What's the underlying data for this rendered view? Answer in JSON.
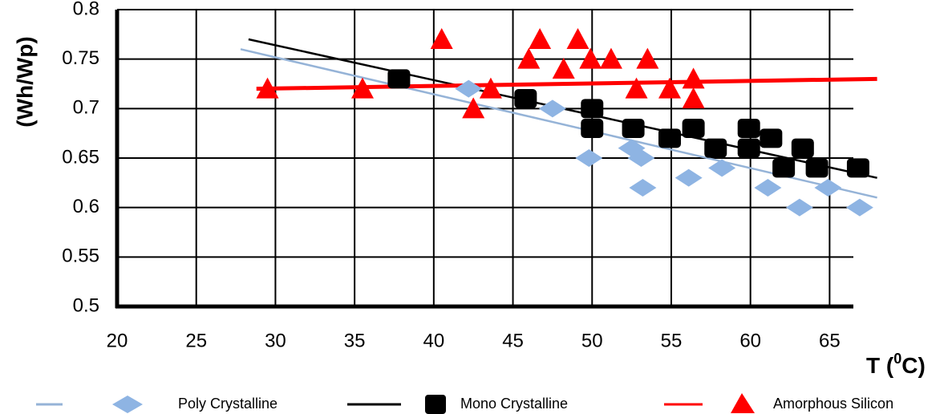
{
  "chart_data": {
    "type": "scatter",
    "title": "",
    "xlabel": "T (0C)",
    "xlabel_main": "T (",
    "xlabel_sup": "0",
    "xlabel_tail": "C)",
    "ylabel": "(Wh/Wp)",
    "xlim": [
      20,
      66.5
    ],
    "ylim": [
      0.5,
      0.8
    ],
    "x_ticks": [
      20,
      25,
      30,
      35,
      40,
      45,
      50,
      55,
      60,
      65
    ],
    "x_tick_labels": [
      "20",
      "25",
      "30",
      "35",
      "40",
      "45",
      "50",
      "55",
      "60",
      "65"
    ],
    "y_ticks": [
      0.5,
      0.55,
      0.6,
      0.65,
      0.7,
      0.75,
      0.8
    ],
    "y_tick_labels": [
      "0.5",
      "0.55",
      "0.6",
      "0.65",
      "0.7",
      "0.75",
      "0.8"
    ],
    "grid": true,
    "legend_position": "bottom",
    "series": [
      {
        "name": "Poly Crystalline",
        "marker": "diamond",
        "color": "#8EB4E3",
        "line_color": "#95B3D7",
        "points": [
          [
            42.2,
            0.72
          ],
          [
            47.5,
            0.7
          ],
          [
            49.8,
            0.65
          ],
          [
            52.5,
            0.66
          ],
          [
            53.1,
            0.65
          ],
          [
            53.2,
            0.62
          ],
          [
            56.1,
            0.63
          ],
          [
            58.2,
            0.64
          ],
          [
            61.1,
            0.62
          ],
          [
            63.1,
            0.6
          ],
          [
            64.9,
            0.62
          ],
          [
            66.9,
            0.6
          ]
        ],
        "trendline": [
          [
            27.8,
            0.76
          ],
          [
            68.0,
            0.61
          ]
        ]
      },
      {
        "name": "Mono Crystalline",
        "marker": "square",
        "color": "#000000",
        "line_color": "#000000",
        "points": [
          [
            37.8,
            0.73
          ],
          [
            45.8,
            0.71
          ],
          [
            50.0,
            0.7
          ],
          [
            50.0,
            0.68
          ],
          [
            52.6,
            0.68
          ],
          [
            54.9,
            0.67
          ],
          [
            56.4,
            0.68
          ],
          [
            57.8,
            0.66
          ],
          [
            59.9,
            0.68
          ],
          [
            59.9,
            0.66
          ],
          [
            61.3,
            0.67
          ],
          [
            62.1,
            0.64
          ],
          [
            63.3,
            0.66
          ],
          [
            64.2,
            0.64
          ],
          [
            66.8,
            0.64
          ]
        ],
        "trendline": [
          [
            28.3,
            0.77
          ],
          [
            68.0,
            0.63
          ]
        ]
      },
      {
        "name": "Amorphous Silicon",
        "marker": "triangle",
        "color": "#FF0000",
        "line_color": "#FF0000",
        "points": [
          [
            29.5,
            0.72
          ],
          [
            35.5,
            0.72
          ],
          [
            40.5,
            0.77
          ],
          [
            42.5,
            0.7
          ],
          [
            43.6,
            0.72
          ],
          [
            46.0,
            0.75
          ],
          [
            46.7,
            0.77
          ],
          [
            48.2,
            0.74
          ],
          [
            49.1,
            0.77
          ],
          [
            49.9,
            0.75
          ],
          [
            51.2,
            0.75
          ],
          [
            52.8,
            0.72
          ],
          [
            53.5,
            0.75
          ],
          [
            54.9,
            0.72
          ],
          [
            56.4,
            0.73
          ],
          [
            56.4,
            0.71
          ]
        ],
        "trendline": [
          [
            28.8,
            0.72
          ],
          [
            68.0,
            0.73
          ]
        ]
      }
    ]
  }
}
